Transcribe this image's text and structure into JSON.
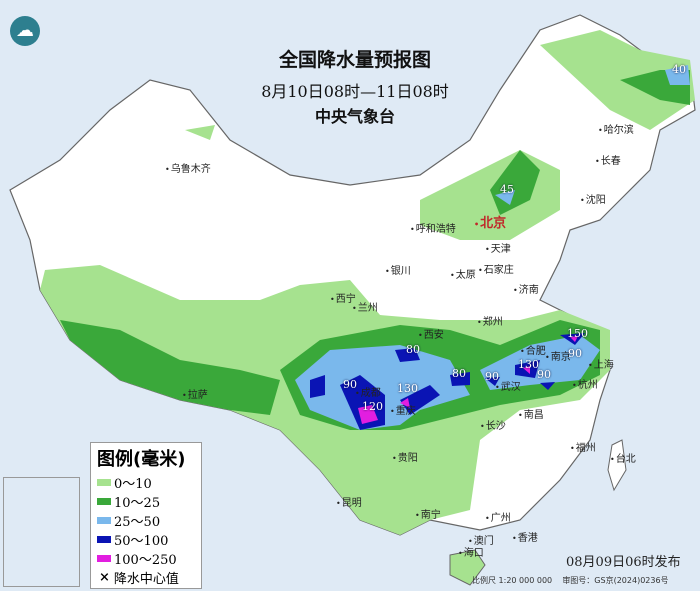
{
  "header": {
    "title": "全国降水量预报图",
    "period": "8月10日08时—11日08时",
    "issuer": "中央气象台"
  },
  "legend": {
    "title": "图例(毫米)",
    "items": [
      {
        "label": "0～10",
        "color": "#a6e28f"
      },
      {
        "label": "10～25",
        "color": "#3aa83a"
      },
      {
        "label": "25～50",
        "color": "#7ab8ec"
      },
      {
        "label": "50～100",
        "color": "#0a14b4"
      },
      {
        "label": "100～250",
        "color": "#e21ee0"
      }
    ],
    "center_label": "降水中心值"
  },
  "cities": [
    "乌鲁木齐",
    "呼和浩特",
    "北京",
    "天津",
    "石家庄",
    "太原",
    "银川",
    "济南",
    "沈阳",
    "长春",
    "哈尔滨",
    "西宁",
    "兰州",
    "西安",
    "郑州",
    "合肥",
    "南京",
    "上海",
    "杭州",
    "武汉",
    "成都",
    "重庆",
    "拉萨",
    "南昌",
    "长沙",
    "贵阳",
    "福州",
    "台北",
    "昆明",
    "南宁",
    "广州",
    "香港",
    "澳门",
    "海口"
  ],
  "rain_centers": [
    "40",
    "45",
    "90",
    "120",
    "130",
    "80",
    "80",
    "90",
    "130",
    "150",
    "90",
    "90"
  ],
  "footer": {
    "published": "08月09日06时发布",
    "scale": "比例尺 1:20 000 000",
    "review_no": "审图号：GS京(2024)0236号"
  }
}
